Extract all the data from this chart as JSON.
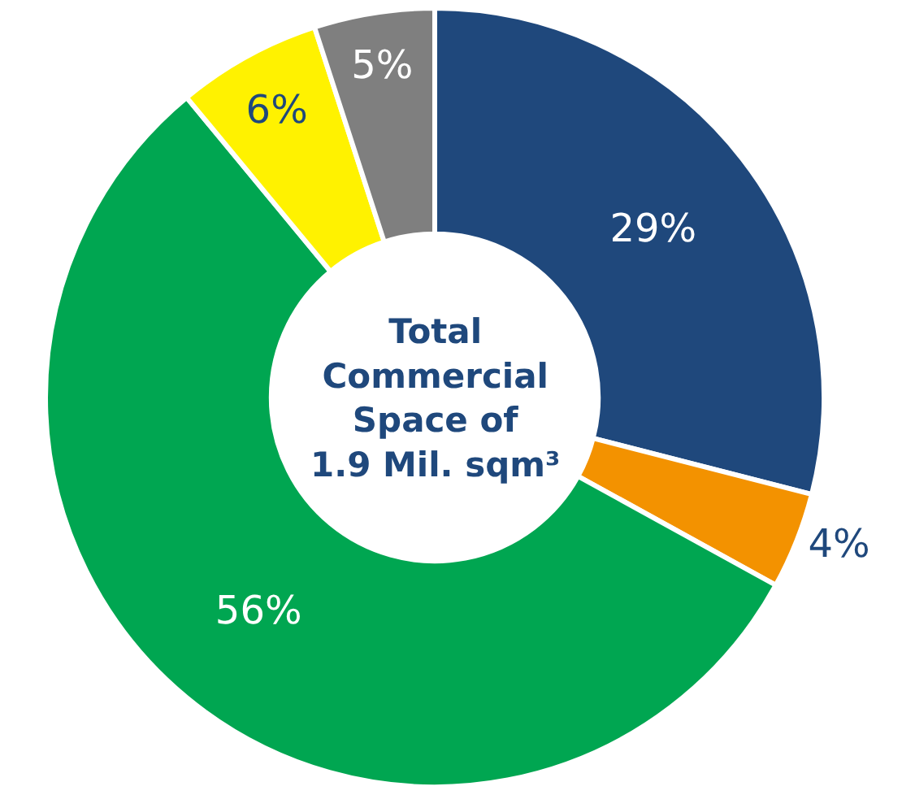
{
  "chart_data": {
    "type": "donut",
    "categories": [
      null,
      null,
      null,
      null,
      null
    ],
    "values": [
      29,
      4,
      56,
      6,
      5
    ],
    "value_labels": [
      "29%",
      "4%",
      "56%",
      "6%",
      "5%"
    ],
    "colors": [
      "#1f487c",
      "#f39200",
      "#00a651",
      "#fff200",
      "#7f7f7f"
    ],
    "annotations": [
      "Total\nCommercial\nSpace of\n1.9 Mil. sqm³"
    ],
    "legend": false
  }
}
